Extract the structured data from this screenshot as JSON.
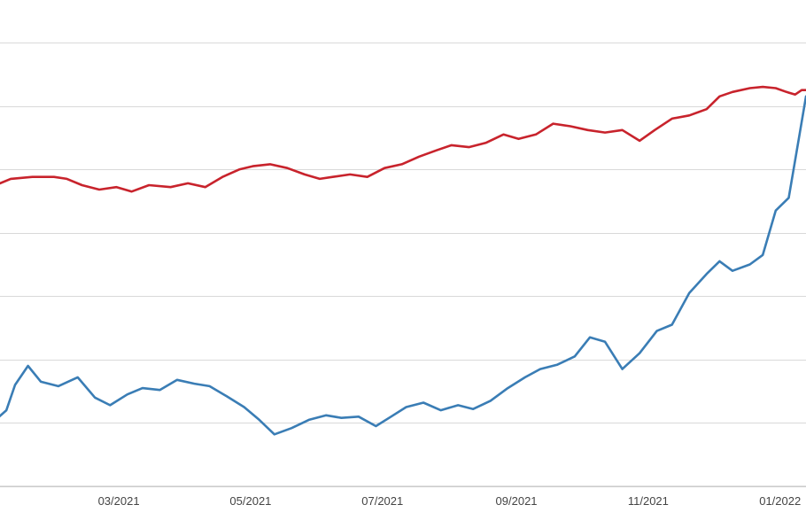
{
  "chart_data": {
    "type": "line",
    "title": "",
    "xlabel": "",
    "ylabel": "",
    "x_ticks": [
      {
        "date": "2021-03-01",
        "label": "03/2021"
      },
      {
        "date": "2021-05-01",
        "label": "05/2021"
      },
      {
        "date": "2021-07-01",
        "label": "07/2021"
      },
      {
        "date": "2021-09-01",
        "label": "09/2021"
      },
      {
        "date": "2021-11-01",
        "label": "11/2021"
      },
      {
        "date": "2022-01-01",
        "label": "01/2022"
      }
    ],
    "xlim": [
      "2021-01-03",
      "2022-01-13"
    ],
    "ylim": [
      0,
      7
    ],
    "y_gridlines": [
      0,
      1,
      2,
      3,
      4,
      5,
      6,
      7
    ],
    "grid": "horizontal",
    "series": [
      {
        "color": "#c8232c",
        "points": [
          [
            "2021-01-03",
            4.75
          ],
          [
            "2021-01-10",
            4.85
          ],
          [
            "2021-01-20",
            4.88
          ],
          [
            "2021-01-30",
            4.88
          ],
          [
            "2021-02-05",
            4.85
          ],
          [
            "2021-02-12",
            4.75
          ],
          [
            "2021-02-20",
            4.68
          ],
          [
            "2021-02-28",
            4.72
          ],
          [
            "2021-03-07",
            4.65
          ],
          [
            "2021-03-15",
            4.75
          ],
          [
            "2021-03-25",
            4.72
          ],
          [
            "2021-04-02",
            4.78
          ],
          [
            "2021-04-10",
            4.72
          ],
          [
            "2021-04-18",
            4.88
          ],
          [
            "2021-04-26",
            5.0
          ],
          [
            "2021-05-02",
            5.05
          ],
          [
            "2021-05-10",
            5.08
          ],
          [
            "2021-05-18",
            5.02
          ],
          [
            "2021-05-26",
            4.92
          ],
          [
            "2021-06-02",
            4.85
          ],
          [
            "2021-06-08",
            4.88
          ],
          [
            "2021-06-16",
            4.92
          ],
          [
            "2021-06-24",
            4.88
          ],
          [
            "2021-07-02",
            5.02
          ],
          [
            "2021-07-10",
            5.08
          ],
          [
            "2021-07-18",
            5.2
          ],
          [
            "2021-07-26",
            5.3
          ],
          [
            "2021-08-02",
            5.38
          ],
          [
            "2021-08-10",
            5.35
          ],
          [
            "2021-08-18",
            5.42
          ],
          [
            "2021-08-26",
            5.55
          ],
          [
            "2021-09-02",
            5.48
          ],
          [
            "2021-09-10",
            5.55
          ],
          [
            "2021-09-18",
            5.72
          ],
          [
            "2021-09-26",
            5.68
          ],
          [
            "2021-10-04",
            5.62
          ],
          [
            "2021-10-12",
            5.58
          ],
          [
            "2021-10-20",
            5.62
          ],
          [
            "2021-10-28",
            5.45
          ],
          [
            "2021-11-04",
            5.62
          ],
          [
            "2021-11-12",
            5.8
          ],
          [
            "2021-11-20",
            5.85
          ],
          [
            "2021-11-28",
            5.95
          ],
          [
            "2021-12-04",
            6.15
          ],
          [
            "2021-12-10",
            6.22
          ],
          [
            "2021-12-18",
            6.28
          ],
          [
            "2021-12-24",
            6.3
          ],
          [
            "2021-12-30",
            6.28
          ],
          [
            "2022-01-04",
            6.22
          ],
          [
            "2022-01-08",
            6.18
          ],
          [
            "2022-01-11",
            6.25
          ],
          [
            "2022-01-13",
            6.25
          ]
        ]
      },
      {
        "color": "#3a7db5",
        "points": [
          [
            "2021-01-03",
            1.05
          ],
          [
            "2021-01-08",
            1.2
          ],
          [
            "2021-01-12",
            1.6
          ],
          [
            "2021-01-18",
            1.9
          ],
          [
            "2021-01-24",
            1.65
          ],
          [
            "2021-02-01",
            1.58
          ],
          [
            "2021-02-10",
            1.72
          ],
          [
            "2021-02-18",
            1.4
          ],
          [
            "2021-02-25",
            1.28
          ],
          [
            "2021-03-05",
            1.45
          ],
          [
            "2021-03-12",
            1.55
          ],
          [
            "2021-03-20",
            1.52
          ],
          [
            "2021-03-28",
            1.68
          ],
          [
            "2021-04-05",
            1.62
          ],
          [
            "2021-04-12",
            1.58
          ],
          [
            "2021-04-20",
            1.42
          ],
          [
            "2021-04-28",
            1.25
          ],
          [
            "2021-05-05",
            1.05
          ],
          [
            "2021-05-12",
            0.82
          ],
          [
            "2021-05-20",
            0.92
          ],
          [
            "2021-05-28",
            1.05
          ],
          [
            "2021-06-05",
            1.12
          ],
          [
            "2021-06-12",
            1.08
          ],
          [
            "2021-06-20",
            1.1
          ],
          [
            "2021-06-28",
            0.95
          ],
          [
            "2021-07-05",
            1.1
          ],
          [
            "2021-07-12",
            1.25
          ],
          [
            "2021-07-20",
            1.32
          ],
          [
            "2021-07-28",
            1.2
          ],
          [
            "2021-08-05",
            1.28
          ],
          [
            "2021-08-12",
            1.22
          ],
          [
            "2021-08-20",
            1.35
          ],
          [
            "2021-08-28",
            1.55
          ],
          [
            "2021-09-05",
            1.72
          ],
          [
            "2021-09-12",
            1.85
          ],
          [
            "2021-09-20",
            1.92
          ],
          [
            "2021-09-28",
            2.05
          ],
          [
            "2021-10-05",
            2.35
          ],
          [
            "2021-10-12",
            2.28
          ],
          [
            "2021-10-20",
            1.85
          ],
          [
            "2021-10-28",
            2.1
          ],
          [
            "2021-11-05",
            2.45
          ],
          [
            "2021-11-12",
            2.55
          ],
          [
            "2021-11-20",
            3.05
          ],
          [
            "2021-11-28",
            3.35
          ],
          [
            "2021-12-04",
            3.55
          ],
          [
            "2021-12-10",
            3.4
          ],
          [
            "2021-12-18",
            3.5
          ],
          [
            "2021-12-24",
            3.65
          ],
          [
            "2021-12-30",
            4.35
          ],
          [
            "2022-01-05",
            4.55
          ],
          [
            "2022-01-10",
            5.55
          ],
          [
            "2022-01-13",
            6.15
          ]
        ]
      }
    ]
  }
}
